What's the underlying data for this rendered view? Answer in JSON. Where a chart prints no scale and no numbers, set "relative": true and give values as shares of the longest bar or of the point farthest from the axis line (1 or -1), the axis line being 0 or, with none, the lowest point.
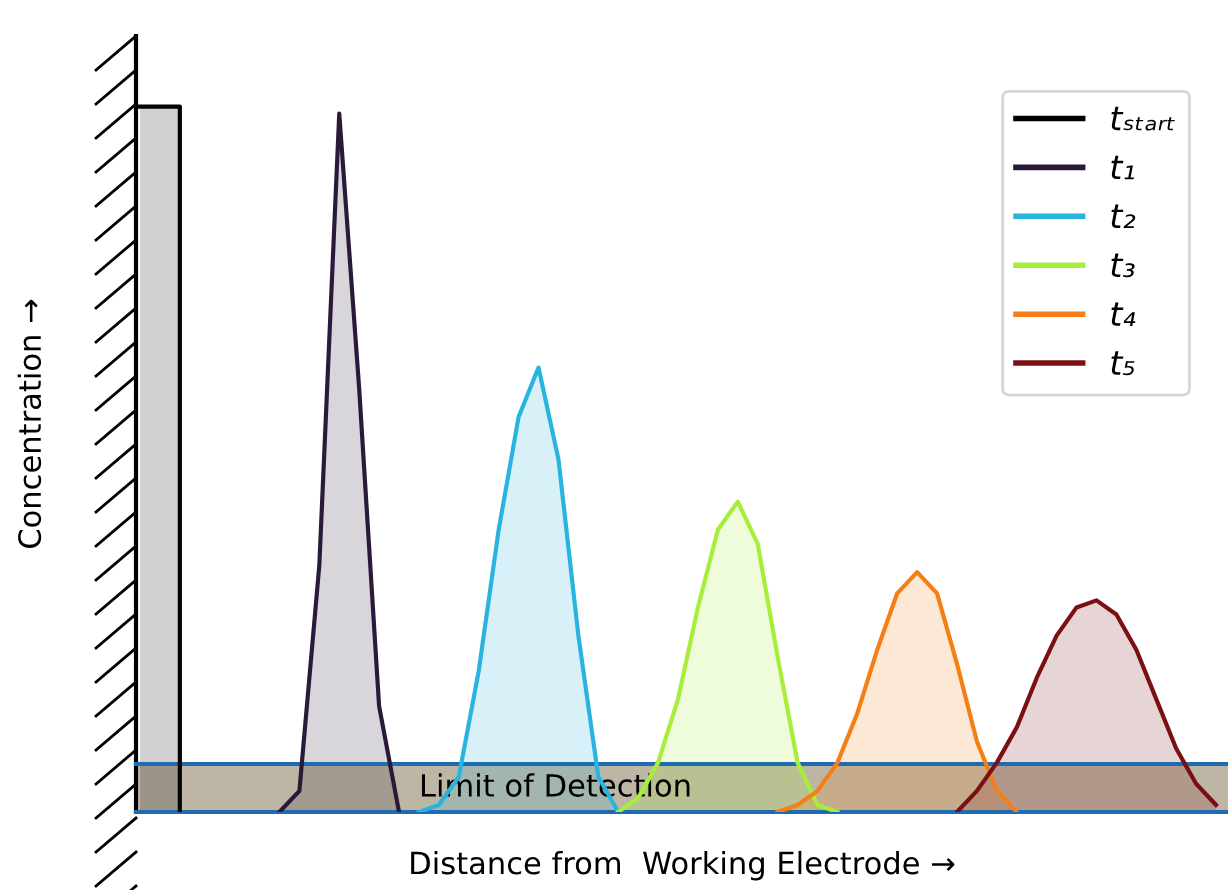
{
  "chart_data": {
    "type": "area",
    "relative": true,
    "xlabel": "Distance from  Working Electrode →",
    "ylabel": "Concentration →",
    "legend": "top right",
    "categories": [
      null,
      null,
      null,
      null,
      null,
      null,
      null,
      null,
      null,
      null,
      null,
      null,
      null,
      null,
      null,
      null,
      null,
      null,
      null,
      null,
      null,
      null,
      null,
      null,
      null,
      null,
      null,
      null,
      null,
      null,
      null,
      null,
      null,
      null,
      null,
      null,
      null,
      null,
      null,
      null,
      null,
      null,
      null,
      null,
      null,
      null,
      null,
      null,
      null,
      null,
      null,
      null,
      null,
      null,
      null
    ],
    "series": [
      {
        "name": "tₛₜₐᵣₜ",
        "type": "step",
        "color": "#000000",
        "values": [
          1,
          1,
          0,
          null,
          null,
          null,
          null,
          null,
          null,
          null,
          null,
          null,
          null,
          null,
          null,
          null,
          null,
          null,
          null,
          null,
          null,
          null,
          null,
          null,
          null,
          null,
          null,
          null,
          null,
          null,
          null,
          null,
          null,
          null,
          null,
          null,
          null,
          null,
          null,
          null,
          null,
          null,
          null,
          null,
          null,
          null,
          null,
          null,
          null,
          null,
          null,
          null,
          null,
          null,
          null
        ]
      },
      {
        "name": "t₁",
        "color": "#2a1a3a",
        "values": [
          null,
          null,
          null,
          null,
          null,
          null,
          null,
          0,
          0.03,
          0.35,
          0.99,
          0.6,
          0.15,
          0,
          null,
          null,
          null,
          null,
          null,
          null,
          null,
          null,
          null,
          null,
          null,
          null,
          null,
          null,
          null,
          null,
          null,
          null,
          null,
          null,
          null,
          null,
          null,
          null,
          null,
          null,
          null,
          null,
          null,
          null,
          null,
          null,
          null,
          null,
          null,
          null,
          null,
          null,
          null,
          null,
          null
        ]
      },
      {
        "name": "t₂",
        "color": "#29b4e0",
        "values": [
          null,
          null,
          null,
          null,
          null,
          null,
          null,
          null,
          null,
          null,
          null,
          null,
          null,
          null,
          0,
          0.01,
          0.05,
          0.2,
          0.4,
          0.56,
          0.63,
          0.5,
          0.25,
          0.05,
          0,
          null,
          null,
          null,
          null,
          null,
          null,
          null,
          null,
          null,
          null,
          null,
          null,
          null,
          null,
          null,
          null,
          null,
          null,
          null,
          null,
          null,
          null,
          null,
          null,
          null,
          null,
          null,
          null,
          null,
          null
        ]
      },
      {
        "name": "t₃",
        "color": "#a6ee3a",
        "values": [
          null,
          null,
          null,
          null,
          null,
          null,
          null,
          null,
          null,
          null,
          null,
          null,
          null,
          null,
          null,
          null,
          null,
          null,
          null,
          null,
          null,
          null,
          null,
          null,
          0,
          0.02,
          0.07,
          0.16,
          0.29,
          0.4,
          0.44,
          0.38,
          0.22,
          0.07,
          0.01,
          0,
          null,
          null,
          null,
          null,
          null,
          null,
          null,
          null,
          null,
          null,
          null,
          null,
          null,
          null,
          null,
          null,
          null,
          null,
          null
        ]
      },
      {
        "name": "t₄",
        "color": "#f57f17",
        "values": [
          null,
          null,
          null,
          null,
          null,
          null,
          null,
          null,
          null,
          null,
          null,
          null,
          null,
          null,
          null,
          null,
          null,
          null,
          null,
          null,
          null,
          null,
          null,
          null,
          null,
          null,
          null,
          null,
          null,
          null,
          null,
          null,
          0,
          0.01,
          0.03,
          0.07,
          0.14,
          0.23,
          0.31,
          0.34,
          0.31,
          0.21,
          0.1,
          0.03,
          0,
          null,
          null,
          null,
          null,
          null,
          null,
          null,
          null,
          null,
          null
        ]
      },
      {
        "name": "t₅",
        "color": "#7a0f14",
        "values": [
          null,
          null,
          null,
          null,
          null,
          null,
          null,
          null,
          null,
          null,
          null,
          null,
          null,
          null,
          null,
          null,
          null,
          null,
          null,
          null,
          null,
          null,
          null,
          null,
          null,
          null,
          null,
          null,
          null,
          null,
          null,
          null,
          null,
          null,
          null,
          null,
          null,
          null,
          null,
          null,
          null,
          0,
          0.03,
          0.07,
          0.12,
          0.19,
          0.25,
          0.29,
          0.3,
          0.28,
          0.23,
          0.16,
          0.09,
          0.04,
          0.01
        ]
      }
    ],
    "ref_lines": [
      {
        "axis": "y",
        "value": 0.068,
        "color": "#1f6db0"
      },
      {
        "axis": "y",
        "value": 0,
        "color": "#1f6db0"
      }
    ],
    "bands": [
      {
        "axis": "y",
        "from": 0,
        "to": 0.068,
        "label": "Limit of Detection",
        "color": "#b3a995"
      }
    ]
  }
}
